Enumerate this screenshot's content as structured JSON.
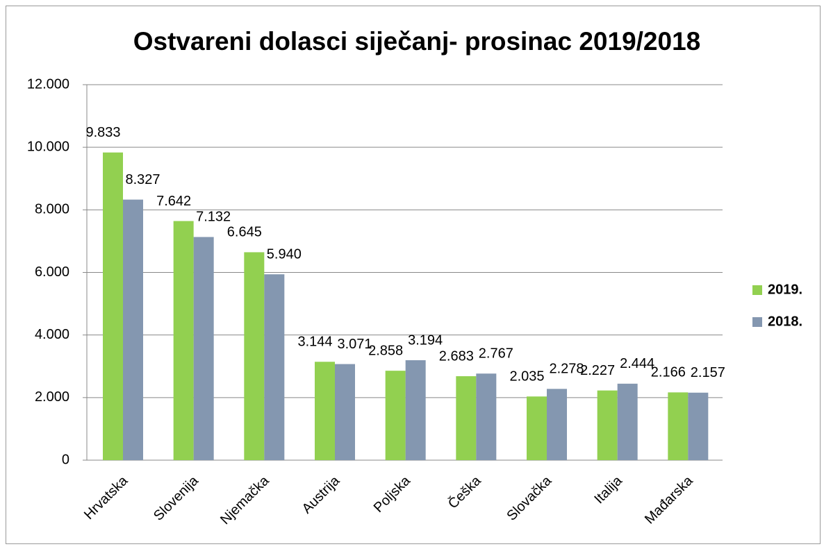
{
  "chart_data": {
    "type": "bar",
    "title": "Ostvareni dolasci siječanj- prosinac 2019/2018",
    "categories": [
      "Hrvatska",
      "Slovenija",
      "Njemačka",
      "Austrija",
      "Poljska",
      "Češka",
      "Slovačka",
      "Italija",
      "Mađarska"
    ],
    "series": [
      {
        "name": "2019.",
        "color": "#92d050",
        "values": [
          9833,
          7642,
          6645,
          3144,
          2858,
          2683,
          2035,
          2227,
          2166
        ],
        "value_labels": [
          "9.833",
          "7.642",
          "6.645",
          "3.144",
          "2.858",
          "2.683",
          "2.035",
          "2.227",
          "2.166"
        ]
      },
      {
        "name": "2018.",
        "color": "#8497b0",
        "values": [
          8327,
          7132,
          5940,
          3071,
          3194,
          2767,
          2278,
          2444,
          2157
        ],
        "value_labels": [
          "8.327",
          "7.132",
          "5.940",
          "3.071",
          "3.194",
          "2.767",
          "2.278",
          "2.444",
          "2.157"
        ]
      }
    ],
    "ylim": [
      0,
      12000
    ],
    "yticks": [
      0,
      {
        "value": 2000,
        "label": "2.000"
      },
      {
        "value": 4000,
        "label": "4.000"
      },
      {
        "value": 6000,
        "label": "6.000"
      },
      {
        "value": 8000,
        "label": "8.000"
      },
      {
        "value": 10000,
        "label": "10.000"
      },
      {
        "value": 12000,
        "label": "12.000"
      }
    ],
    "grid": true,
    "legend": "right"
  }
}
